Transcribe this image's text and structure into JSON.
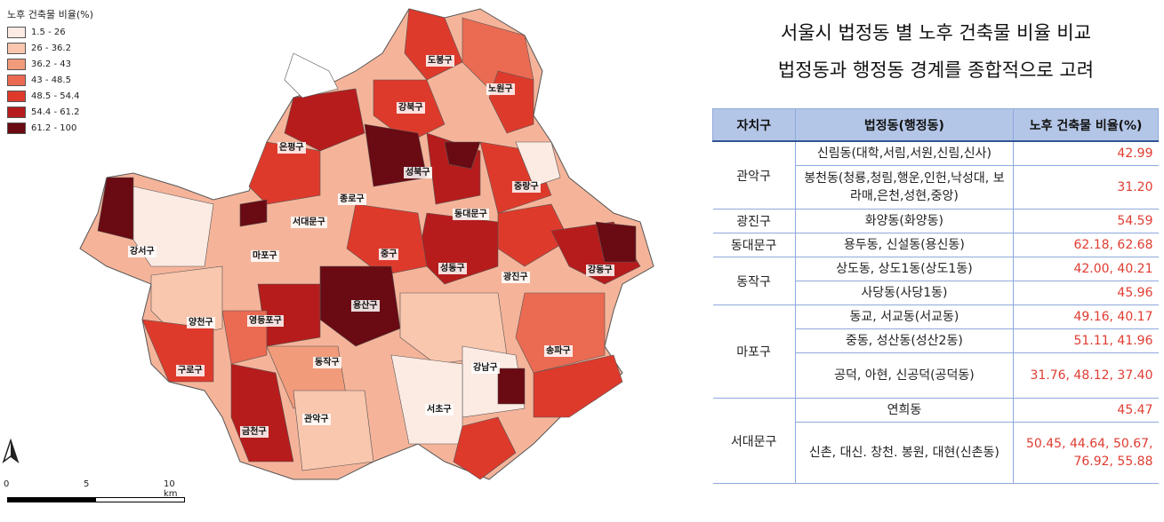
{
  "legend": {
    "title": "노후 건축물 비율(%)",
    "items": [
      {
        "label": "1.5 - 26",
        "color": "#fcebe3"
      },
      {
        "label": "26 - 36.2",
        "color": "#f9c6ae"
      },
      {
        "label": "36.2 - 43",
        "color": "#f29b7b"
      },
      {
        "label": "43 - 48.5",
        "color": "#eb6a52"
      },
      {
        "label": "48.5 - 54.4",
        "color": "#de3a2c"
      },
      {
        "label": "54.4 - 61.2",
        "color": "#b61c1c"
      },
      {
        "label": "61.2 - 100",
        "color": "#6a0a12"
      }
    ]
  },
  "map": {
    "district_labels": [
      "도봉구",
      "노원구",
      "강북구",
      "은평구",
      "성북구",
      "중랑구",
      "종로구",
      "동대문구",
      "서대문구",
      "강서구",
      "마포구",
      "중구",
      "광진구",
      "성동구",
      "강동구",
      "용산구",
      "양천구",
      "영등포구",
      "송파구",
      "동작구",
      "구로구",
      "강남구",
      "서초구",
      "관악구",
      "금천구"
    ],
    "scale": {
      "ticks": [
        "0",
        "5",
        "10 km"
      ]
    }
  },
  "title": {
    "line1": "서울시 법정동 별 노후 건축물 비율 비교",
    "line2": "법정동과 행정동 경계를 종합적으로 고려"
  },
  "table": {
    "headers": [
      "자치구",
      "법정동(행정동)",
      "노후 건축물 비율(%)"
    ],
    "rows": [
      {
        "gu": "관악구",
        "dong": "신림동(대학,서림,서원,신림,신사)",
        "value": "42.99"
      },
      {
        "gu": "",
        "dong": "봉천동(청룡,청림,행운,인헌,낙성대, 보라매,은천,성현,중앙)",
        "value": "31.20"
      },
      {
        "gu": "광진구",
        "dong": "화양동(화양동)",
        "value": "54.59"
      },
      {
        "gu": "동대문구",
        "dong": "용두동, 신설동(용신동)",
        "value": "62.18, 62.68"
      },
      {
        "gu": "동작구",
        "dong": "상도동, 상도1동(상도1동)",
        "value": "42.00, 40.21"
      },
      {
        "gu": "",
        "dong": "사당동(사당1동)",
        "value": "45.96"
      },
      {
        "gu": "마포구",
        "dong": "동교, 서교동(서교동)",
        "value": "49.16, 40.17"
      },
      {
        "gu": "",
        "dong": "중동, 성산동(성산2동)",
        "value": "51.11, 41.96"
      },
      {
        "gu": "",
        "dong": "공덕, 아현, 신공덕(공덕동)",
        "value": "31.76, 48.12, 37.40"
      },
      {
        "gu": "서대문구",
        "dong": "연희동",
        "value": "45.47"
      },
      {
        "gu": "",
        "dong": "신촌, 대신. 창천. 봉원, 대현(신촌동)",
        "value": "50.45, 44.64, 50.67, 76.92, 55.88"
      }
    ]
  }
}
